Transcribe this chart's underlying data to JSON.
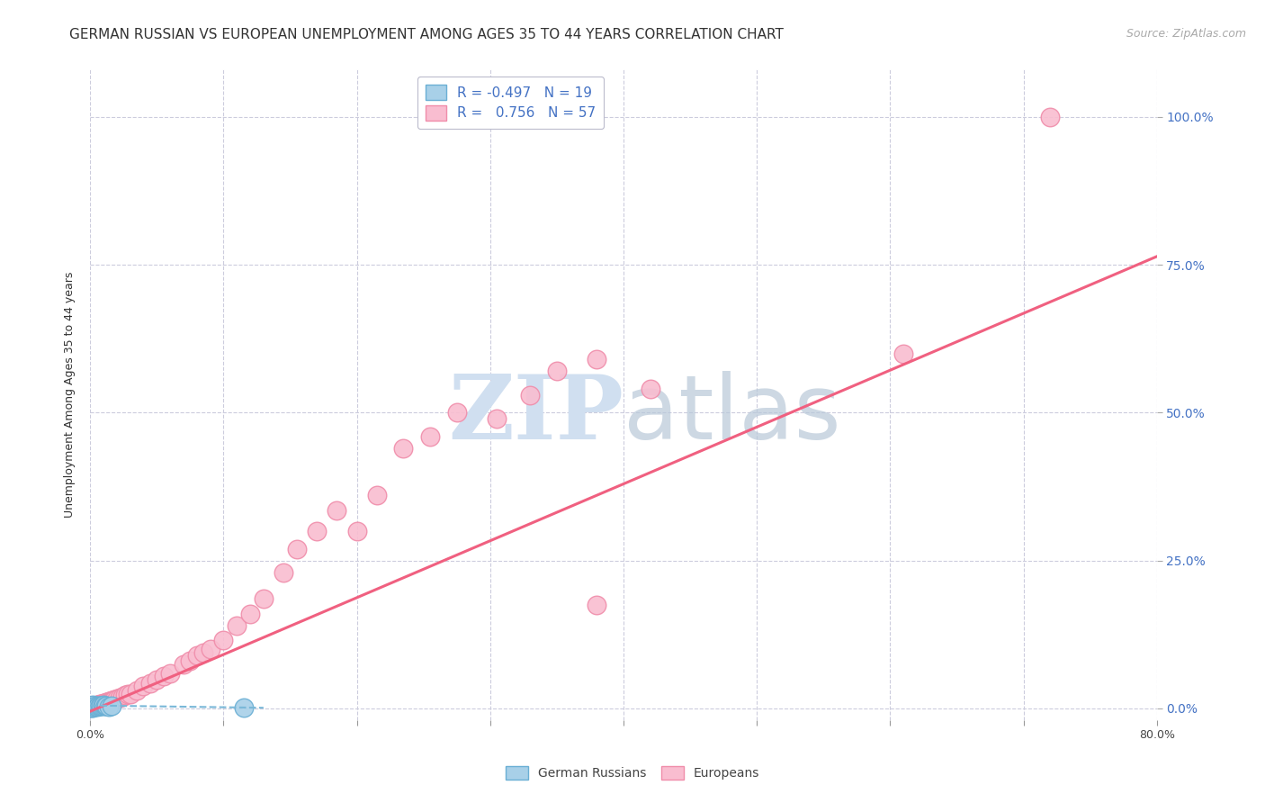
{
  "title": "GERMAN RUSSIAN VS EUROPEAN UNEMPLOYMENT AMONG AGES 35 TO 44 YEARS CORRELATION CHART",
  "source": "Source: ZipAtlas.com",
  "ylabel": "Unemployment Among Ages 35 to 44 years",
  "xlabel": "",
  "xlim": [
    0,
    0.8
  ],
  "ylim": [
    -0.02,
    1.08
  ],
  "xticks": [
    0.0,
    0.1,
    0.2,
    0.3,
    0.4,
    0.5,
    0.6,
    0.7,
    0.8
  ],
  "xticklabels": [
    "0.0%",
    "",
    "",
    "",
    "",
    "",
    "",
    "",
    "80.0%"
  ],
  "ytick_positions": [
    0.0,
    0.25,
    0.5,
    0.75,
    1.0
  ],
  "ytick_labels": [
    "0.0%",
    "25.0%",
    "50.0%",
    "75.0%",
    "100.0%"
  ],
  "legend_R_gr": "-0.497",
  "legend_N_gr": "19",
  "legend_R_eu": "0.756",
  "legend_N_eu": "57",
  "gr_color": "#A8D0E8",
  "eu_color": "#F9BDD0",
  "gr_edge_color": "#6AAFD4",
  "eu_edge_color": "#F08DAA",
  "gr_trend_color": "#7AB8D8",
  "eu_trend_color": "#F06080",
  "watermark_color": "#D0DFF0",
  "background_color": "#FFFFFF",
  "plot_bg_color": "#FFFFFF",
  "grid_color": "#CCCCDD",
  "title_fontsize": 11,
  "axis_label_fontsize": 9,
  "tick_fontsize": 9,
  "source_fontsize": 9,
  "german_russians_x": [
    0.0,
    0.0,
    0.001,
    0.001,
    0.002,
    0.002,
    0.003,
    0.004,
    0.005,
    0.006,
    0.007,
    0.008,
    0.009,
    0.01,
    0.011,
    0.012,
    0.014,
    0.016,
    0.115
  ],
  "german_russians_y": [
    0.002,
    0.005,
    0.001,
    0.003,
    0.002,
    0.006,
    0.003,
    0.004,
    0.003,
    0.004,
    0.005,
    0.004,
    0.005,
    0.006,
    0.004,
    0.005,
    0.003,
    0.004,
    0.001
  ],
  "europeans_x": [
    0.0,
    0.001,
    0.002,
    0.003,
    0.004,
    0.005,
    0.006,
    0.007,
    0.008,
    0.009,
    0.01,
    0.011,
    0.012,
    0.013,
    0.014,
    0.015,
    0.016,
    0.017,
    0.018,
    0.02,
    0.022,
    0.024,
    0.026,
    0.028,
    0.03,
    0.035,
    0.04,
    0.045,
    0.05,
    0.055,
    0.06,
    0.07,
    0.075,
    0.08,
    0.085,
    0.09,
    0.1,
    0.11,
    0.12,
    0.13,
    0.145,
    0.155,
    0.17,
    0.185,
    0.2,
    0.215,
    0.235,
    0.255,
    0.275,
    0.305,
    0.33,
    0.35,
    0.38,
    0.42,
    0.38,
    0.61,
    0.72
  ],
  "europeans_y": [
    0.003,
    0.004,
    0.004,
    0.005,
    0.005,
    0.006,
    0.006,
    0.007,
    0.008,
    0.008,
    0.009,
    0.009,
    0.01,
    0.01,
    0.012,
    0.012,
    0.013,
    0.014,
    0.015,
    0.016,
    0.018,
    0.02,
    0.022,
    0.024,
    0.025,
    0.03,
    0.038,
    0.042,
    0.048,
    0.055,
    0.06,
    0.075,
    0.08,
    0.09,
    0.095,
    0.1,
    0.115,
    0.14,
    0.16,
    0.185,
    0.23,
    0.27,
    0.3,
    0.335,
    0.3,
    0.36,
    0.44,
    0.46,
    0.5,
    0.49,
    0.53,
    0.57,
    0.59,
    0.54,
    0.175,
    0.6,
    1.0
  ]
}
